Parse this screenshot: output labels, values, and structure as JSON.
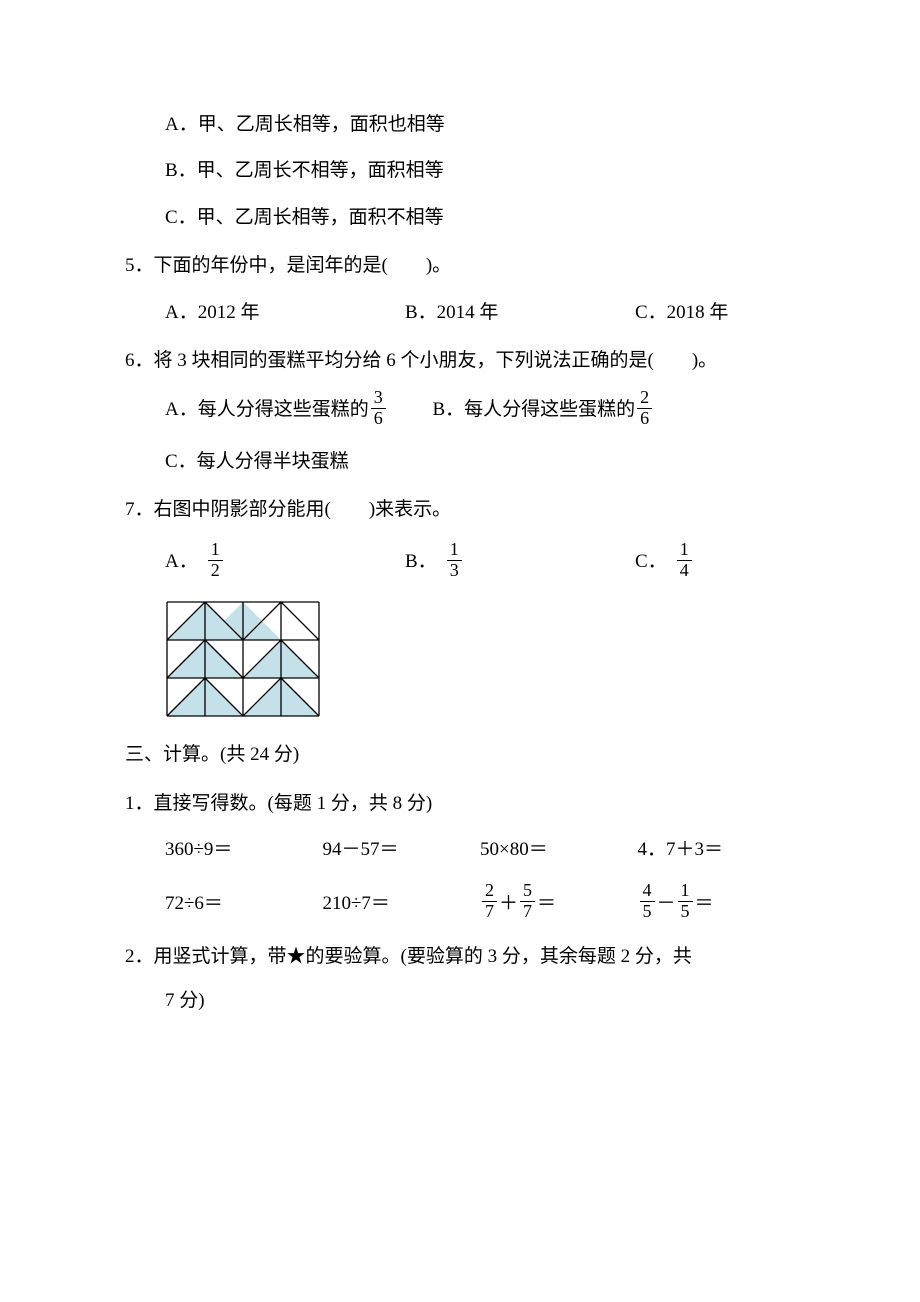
{
  "q4_options": {
    "a": "A．甲、乙周长相等，面积也相等",
    "b": "B．甲、乙周长不相等，面积相等",
    "c": "C．甲、乙周长相等，面积不相等"
  },
  "q5": {
    "stem_num": "5．",
    "stem": "下面的年份中，是闰年的是(　　)。",
    "a": "A．2012 年",
    "b": "B．2014 年",
    "c": "C．2018 年"
  },
  "q6": {
    "stem_num": "6．",
    "stem": "将 3 块相同的蛋糕平均分给 6 个小朋友，下列说法正确的是(　　)。",
    "a_pre": "A．每人分得这些蛋糕的",
    "a_num": "3",
    "a_den": "6",
    "b_pre": "B．每人分得这些蛋糕的",
    "b_num": "2",
    "b_den": "6",
    "c": "C．每人分得半块蛋糕"
  },
  "q7": {
    "stem_num": "7．",
    "stem": "右图中阴影部分能用(　　)来表示。",
    "a_label": "A．",
    "a_num": "1",
    "a_den": "2",
    "b_label": "B．",
    "b_num": "1",
    "b_den": "3",
    "c_label": "C．",
    "c_num": "1",
    "c_den": "4",
    "figure": {
      "grid_cols": 4,
      "grid_cell": 38,
      "fill_color": "#c4e0e8",
      "stroke_color": "#000000",
      "bg_color": "#ffffff",
      "stroke_width": 1.3,
      "triangles": [
        [
          [
            1,
            0
          ],
          [
            2,
            1
          ],
          [
            0,
            1
          ]
        ],
        [
          [
            2,
            0
          ],
          [
            3,
            1
          ],
          [
            1,
            1
          ]
        ],
        [
          [
            1,
            1
          ],
          [
            2,
            2
          ],
          [
            0,
            2
          ]
        ],
        [
          [
            3,
            1
          ],
          [
            4,
            2
          ],
          [
            2,
            2
          ]
        ],
        [
          [
            1,
            2
          ],
          [
            2,
            3
          ],
          [
            0,
            3
          ]
        ],
        [
          [
            3,
            2
          ],
          [
            4,
            3
          ],
          [
            2,
            3
          ]
        ]
      ],
      "diagonals": [
        [
          [
            0,
            1
          ],
          [
            1,
            0
          ]
        ],
        [
          [
            1,
            0
          ],
          [
            2,
            1
          ]
        ],
        [
          [
            2,
            1
          ],
          [
            3,
            0
          ]
        ],
        [
          [
            3,
            0
          ],
          [
            4,
            1
          ]
        ],
        [
          [
            0,
            2
          ],
          [
            1,
            1
          ]
        ],
        [
          [
            1,
            1
          ],
          [
            2,
            2
          ]
        ],
        [
          [
            2,
            2
          ],
          [
            3,
            1
          ]
        ],
        [
          [
            3,
            1
          ],
          [
            4,
            2
          ]
        ],
        [
          [
            0,
            3
          ],
          [
            1,
            2
          ]
        ],
        [
          [
            1,
            2
          ],
          [
            2,
            3
          ]
        ],
        [
          [
            2,
            3
          ],
          [
            3,
            2
          ]
        ],
        [
          [
            3,
            2
          ],
          [
            4,
            3
          ]
        ]
      ]
    }
  },
  "section3": {
    "head": "三、计算。(共 24 分)",
    "sub1": {
      "num": "1．",
      "text": "直接写得数。(每题 1 分，共 8 分)",
      "row1": {
        "a": "360÷9＝",
        "b": "94－57＝",
        "c": "50×80＝",
        "d": "4．7＋3＝"
      },
      "row2": {
        "a": "72÷6＝",
        "b": "210÷7＝",
        "c_f1_num": "2",
        "c_f1_den": "7",
        "c_op": "＋",
        "c_f2_num": "5",
        "c_f2_den": "7",
        "c_eq": "＝",
        "d_f1_num": "4",
        "d_f1_den": "5",
        "d_op": "－",
        "d_f2_num": "1",
        "d_f2_den": "5",
        "d_eq": "＝"
      }
    },
    "sub2": {
      "num": "2．",
      "text": "用竖式计算，带★的要验算。(要验算的 3 分，其余每题 2 分，共",
      "text2": "7 分)"
    }
  }
}
